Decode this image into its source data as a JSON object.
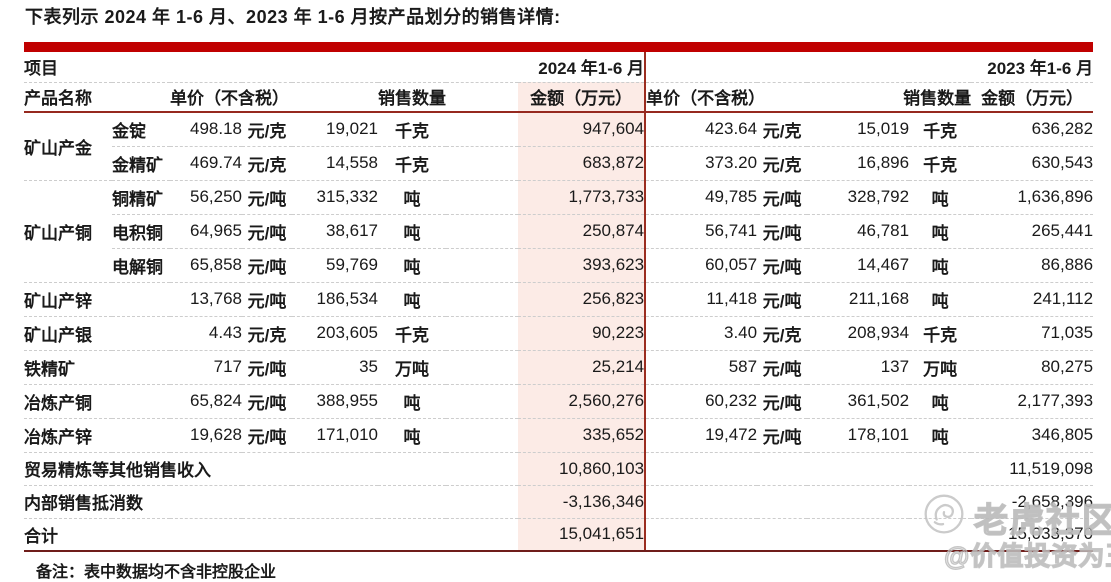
{
  "title": "下表列示 2024 年 1-6 月、2023 年 1-6 月按产品划分的销售详情:",
  "colors": {
    "top_bar_red": "#c00000",
    "divider_maroon": "#9b2d20",
    "bottom_line_maroon": "#6f1d1a",
    "highlight_pink": "#fcebe6",
    "watermark_gray": "#c3c3c3"
  },
  "table": {
    "header": {
      "item_label": "项目",
      "period_2024": "2024 年1-6 月",
      "period_2023": "2023 年1-6 月",
      "product_label": "产品名称",
      "unit_price_label_2024": "单价（不含税）",
      "qty_label_2024": "销售数量",
      "amount_label_2024": "金额（万元）",
      "unit_price_label_2023": "单价（不含税）",
      "qty_label_2023": "销售数量",
      "amount_label_2023": "金额（万元）"
    },
    "rows": [
      {
        "group": "矿山产金",
        "span": 2,
        "product": "金锭",
        "cells_2024": [
          "498.18",
          "元/克",
          "19,021",
          "千克",
          "947,604"
        ],
        "cells_2023": [
          "423.64",
          "元/克",
          "15,019",
          "千克",
          "636,282"
        ]
      },
      {
        "product": "金精矿",
        "cells_2024": [
          "469.74",
          "元/克",
          "14,558",
          "千克",
          "683,872"
        ],
        "cells_2023": [
          "373.20",
          "元/克",
          "16,896",
          "千克",
          "630,543"
        ]
      },
      {
        "group": "矿山产铜",
        "span": 3,
        "product": "铜精矿",
        "cells_2024": [
          "56,250",
          "元/吨",
          "315,332",
          "吨",
          "1,773,733"
        ],
        "cells_2023": [
          "49,785",
          "元/吨",
          "328,792",
          "吨",
          "1,636,896"
        ]
      },
      {
        "product": "电积铜",
        "cells_2024": [
          "64,965",
          "元/吨",
          "38,617",
          "吨",
          "250,874"
        ],
        "cells_2023": [
          "56,741",
          "元/吨",
          "46,781",
          "吨",
          "265,441"
        ]
      },
      {
        "product": "电解铜",
        "cells_2024": [
          "65,858",
          "元/吨",
          "59,769",
          "吨",
          "393,623"
        ],
        "cells_2023": [
          "60,057",
          "元/吨",
          "14,467",
          "吨",
          "86,886"
        ]
      },
      {
        "group": "矿山产锌",
        "span": 1,
        "cells_2024": [
          "13,768",
          "元/吨",
          "186,534",
          "吨",
          "256,823"
        ],
        "cells_2023": [
          "11,418",
          "元/吨",
          "211,168",
          "吨",
          "241,112"
        ]
      },
      {
        "group": "矿山产银",
        "span": 1,
        "cells_2024": [
          "4.43",
          "元/克",
          "203,605",
          "千克",
          "90,223"
        ],
        "cells_2023": [
          "3.40",
          "元/克",
          "208,934",
          "千克",
          "71,035"
        ]
      },
      {
        "group": "铁精矿",
        "span": 1,
        "cells_2024": [
          "717",
          "元/吨",
          "35",
          "万吨",
          "25,214"
        ],
        "cells_2023": [
          "587",
          "元/吨",
          "137",
          "万吨",
          "80,275"
        ]
      },
      {
        "group": "冶炼产铜",
        "span": 1,
        "cells_2024": [
          "65,824",
          "元/吨",
          "388,955",
          "吨",
          "2,560,276"
        ],
        "cells_2023": [
          "60,232",
          "元/吨",
          "361,502",
          "吨",
          "2,177,393"
        ]
      },
      {
        "group": "冶炼产锌",
        "span": 1,
        "cells_2024": [
          "19,628",
          "元/吨",
          "171,010",
          "吨",
          "335,652"
        ],
        "cells_2023": [
          "19,472",
          "元/吨",
          "178,101",
          "吨",
          "346,805"
        ]
      }
    ],
    "summary_rows": [
      {
        "label": "贸易精炼等其他销售收入",
        "amount_2024": "10,860,103",
        "amount_2023": "11,519,098"
      },
      {
        "label": "内部销售抵消数",
        "amount_2024": "-3,136,346",
        "amount_2023": "-2,658,396",
        "total": false
      },
      {
        "label": "合计",
        "amount_2024": "15,041,651",
        "amount_2023": "15,033,370",
        "total": true
      }
    ],
    "note": "备注：表中数据均不含非控股企业"
  },
  "watermark": {
    "logo": "tiger-logo",
    "brand": "老虎社区",
    "handle": "@价值投资为王"
  }
}
